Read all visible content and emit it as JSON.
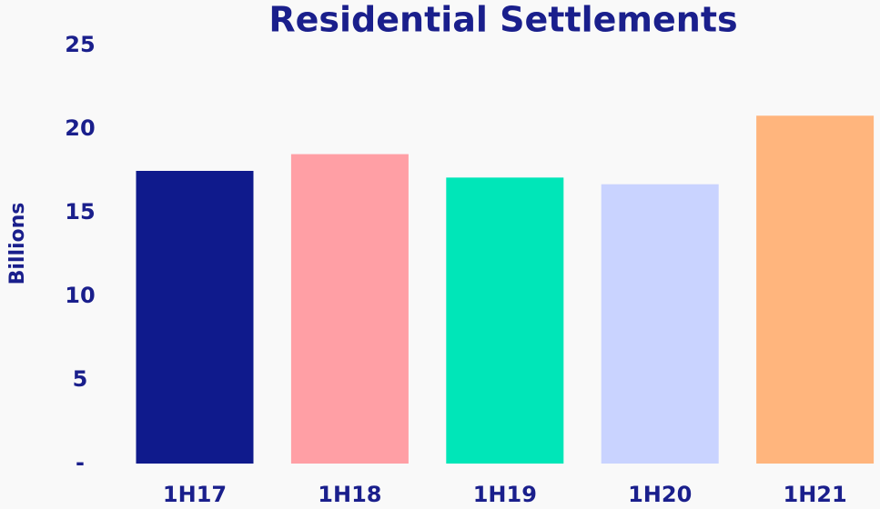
{
  "chart_data": {
    "type": "bar",
    "title": "Residential Settlements",
    "y_label": "Billions",
    "categories": [
      "1H17",
      "1H18",
      "1H19",
      "1H20",
      "1H21"
    ],
    "values": [
      17.5,
      18.5,
      17.1,
      16.7,
      20.8
    ],
    "colors": [
      "#0f1a8c",
      "#ff9fa5",
      "#00e6b8",
      "#c9d3ff",
      "#ffb57d"
    ],
    "ylim": [
      0,
      25
    ],
    "yticks": [
      {
        "value": 0,
        "label": "-"
      },
      5,
      10,
      15,
      20,
      25
    ],
    "grid": false
  }
}
